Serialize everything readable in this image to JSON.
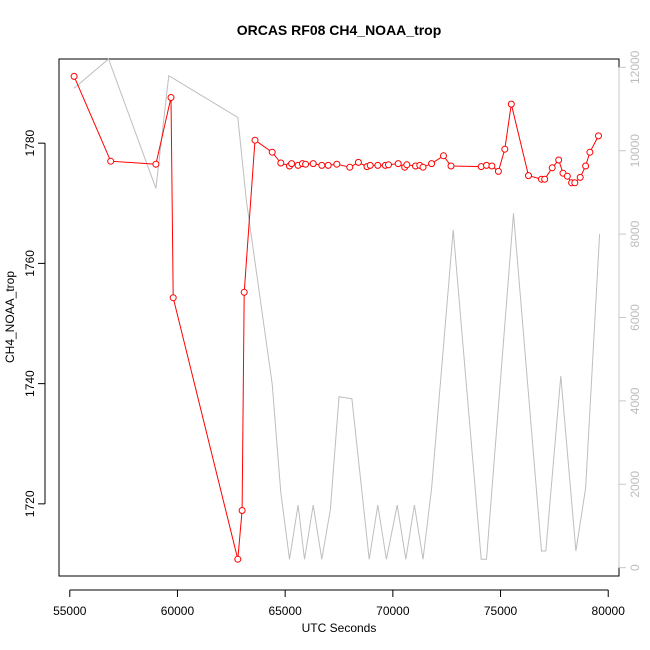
{
  "chart_data": {
    "type": "line",
    "title": "ORCAS RF08 CH4_NOAA_trop",
    "xlabel": "UTC Seconds",
    "ylabel": "CH4_NOAA_trop",
    "xlim": [
      54500,
      80500
    ],
    "ylim": [
      1708,
      1794
    ],
    "y2lim": [
      -200,
      12200
    ],
    "x_ticks": [
      55000,
      60000,
      65000,
      70000,
      75000,
      80000
    ],
    "y_ticks": [
      1720,
      1740,
      1760,
      1780
    ],
    "y2_ticks": [
      0,
      2000,
      4000,
      6000,
      8000,
      10000,
      12000
    ],
    "grid": false,
    "series": [
      {
        "color": "#ff0000",
        "marker": "open-circle",
        "axis": "left",
        "points": [
          [
            55200,
            1791.1
          ],
          [
            56900,
            1777.0
          ],
          [
            59000,
            1776.5
          ],
          [
            59700,
            1787.6
          ],
          [
            59800,
            1754.3
          ],
          [
            62800,
            1710.8
          ],
          [
            63000,
            1718.9
          ],
          [
            63100,
            1755.2
          ],
          [
            63600,
            1780.5
          ],
          [
            64400,
            1778.5
          ],
          [
            64800,
            1776.7
          ],
          [
            65200,
            1776.2
          ],
          [
            65300,
            1776.6
          ],
          [
            65600,
            1776.3
          ],
          [
            65800,
            1776.6
          ],
          [
            65950,
            1776.5
          ],
          [
            66300,
            1776.6
          ],
          [
            66700,
            1776.3
          ],
          [
            67000,
            1776.3
          ],
          [
            67400,
            1776.5
          ],
          [
            68000,
            1776.0
          ],
          [
            68400,
            1776.8
          ],
          [
            68800,
            1776.1
          ],
          [
            68950,
            1776.3
          ],
          [
            69300,
            1776.3
          ],
          [
            69650,
            1776.3
          ],
          [
            69800,
            1776.4
          ],
          [
            70250,
            1776.6
          ],
          [
            70550,
            1776.0
          ],
          [
            70650,
            1776.4
          ],
          [
            71050,
            1776.2
          ],
          [
            71250,
            1776.3
          ],
          [
            71400,
            1776.0
          ],
          [
            71800,
            1776.6
          ],
          [
            72350,
            1777.9
          ],
          [
            72700,
            1776.2
          ],
          [
            74100,
            1776.1
          ],
          [
            74350,
            1776.3
          ],
          [
            74600,
            1776.2
          ],
          [
            74900,
            1775.3
          ],
          [
            75200,
            1779.0
          ],
          [
            75500,
            1786.5
          ],
          [
            76300,
            1774.6
          ],
          [
            76900,
            1774.0
          ],
          [
            77050,
            1774.0
          ],
          [
            77400,
            1775.9
          ],
          [
            77700,
            1777.2
          ],
          [
            77900,
            1775.0
          ],
          [
            78100,
            1774.5
          ],
          [
            78300,
            1773.4
          ],
          [
            78450,
            1773.4
          ],
          [
            78700,
            1774.3
          ],
          [
            78950,
            1776.2
          ],
          [
            79150,
            1778.5
          ],
          [
            79550,
            1781.2
          ]
        ]
      },
      {
        "color": "#bebebe",
        "marker": "none",
        "axis": "right",
        "points": [
          [
            55200,
            11500
          ],
          [
            56800,
            12200
          ],
          [
            59000,
            9100
          ],
          [
            59600,
            11800
          ],
          [
            62800,
            10800
          ],
          [
            63200,
            8800
          ],
          [
            64400,
            4400
          ],
          [
            64800,
            1800
          ],
          [
            65200,
            200
          ],
          [
            65600,
            1500
          ],
          [
            65900,
            200
          ],
          [
            66300,
            1500
          ],
          [
            66700,
            200
          ],
          [
            67100,
            1400
          ],
          [
            67500,
            4100
          ],
          [
            68100,
            4050
          ],
          [
            68900,
            200
          ],
          [
            69300,
            1500
          ],
          [
            69700,
            200
          ],
          [
            70200,
            1500
          ],
          [
            70600,
            200
          ],
          [
            71000,
            1500
          ],
          [
            71400,
            200
          ],
          [
            71800,
            1900
          ],
          [
            72800,
            8100
          ],
          [
            74100,
            200
          ],
          [
            74350,
            200
          ],
          [
            75600,
            8500
          ],
          [
            76900,
            400
          ],
          [
            77100,
            400
          ],
          [
            77800,
            4600
          ],
          [
            78500,
            400
          ],
          [
            78950,
            1900
          ],
          [
            79600,
            8000
          ]
        ]
      }
    ]
  }
}
